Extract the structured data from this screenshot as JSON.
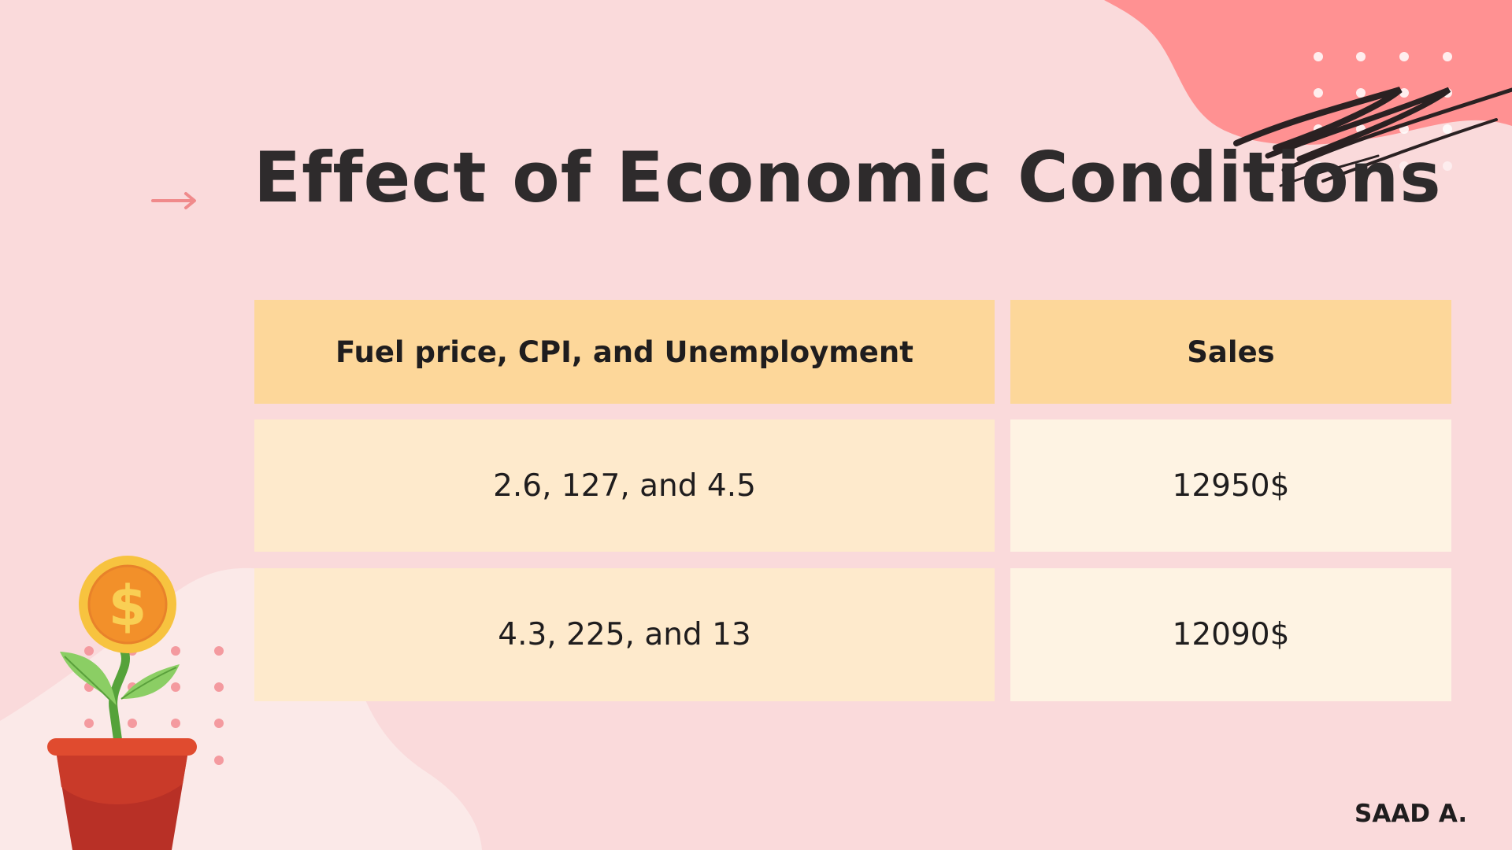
{
  "slide": {
    "title": "Effect of Economic Conditions",
    "author": "SAAD A."
  },
  "table": {
    "headers": [
      "Fuel price, CPI, and Unemployment",
      "Sales"
    ],
    "rows": [
      [
        "2.6, 127, and 4.5",
        "12950$"
      ],
      [
        "4.3, 225, and 13",
        "12090$"
      ]
    ]
  },
  "colors": {
    "background": "#fadadb",
    "accent_blob": "#ff9192",
    "header_fill": "#fdd79a",
    "cell_fill_left": "#feeacc",
    "cell_fill_right": "#fef3e3",
    "text": "#2e2b2c"
  },
  "icons": [
    "arrow-right-icon",
    "money-plant-icon",
    "scribble-decoration"
  ]
}
